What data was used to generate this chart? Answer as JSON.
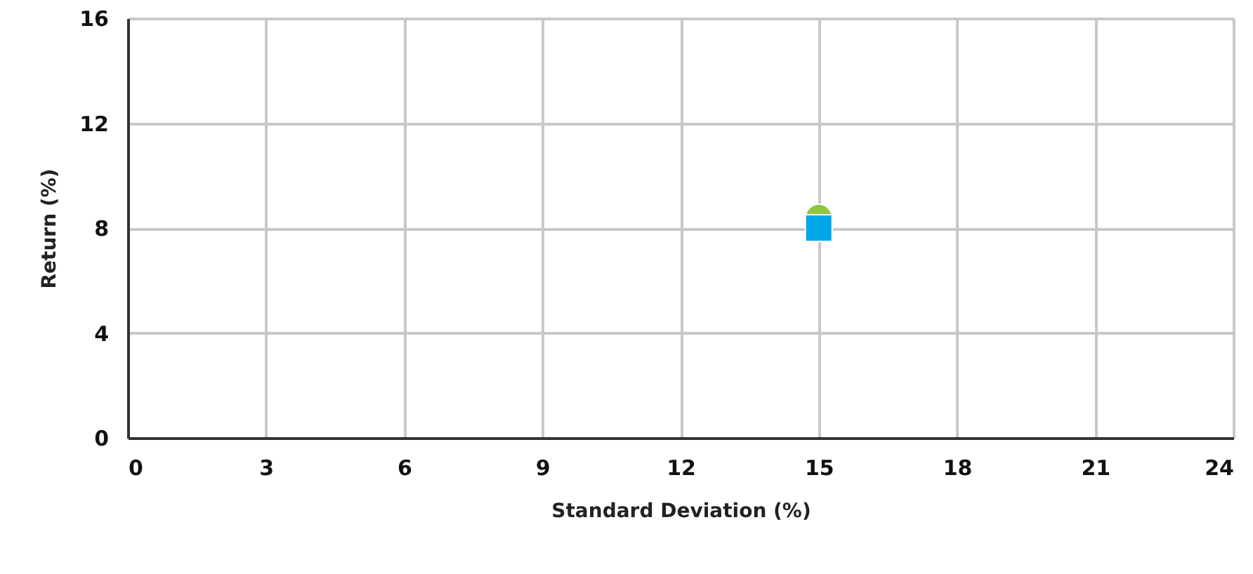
{
  "chart_data": {
    "type": "scatter",
    "xlabel": "Standard Deviation (%)",
    "ylabel": "Return (%)",
    "series": [
      {
        "color": "#8dc63f",
        "marker": "circle",
        "x": [
          15
        ],
        "values": [
          8.4
        ]
      },
      {
        "color": "#00a6e8",
        "marker": "square",
        "x": [
          15
        ],
        "values": [
          8
        ]
      }
    ],
    "xlim": [
      0,
      24
    ],
    "xticks": [
      0,
      3,
      6,
      9,
      12,
      15,
      18,
      21,
      24
    ],
    "ylim": [
      0,
      16
    ],
    "yticks": [
      0,
      4,
      8,
      12,
      16
    ],
    "grid": true
  }
}
